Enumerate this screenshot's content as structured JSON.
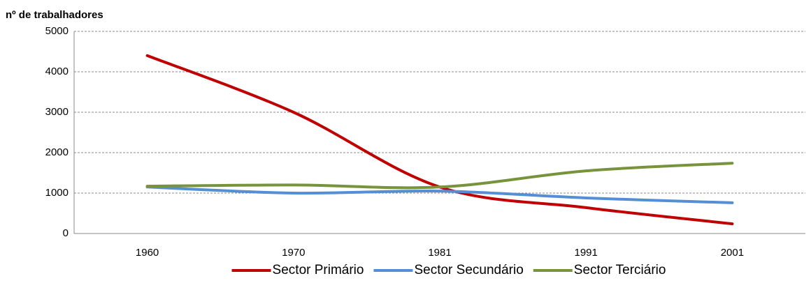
{
  "chart_data": {
    "type": "line",
    "y_label": "nº de trabalhadores",
    "categories": [
      "1960",
      "1970",
      "1981",
      "1991",
      "2001"
    ],
    "series": [
      {
        "name": "Sector Primário",
        "color": "#c00000",
        "values": [
          4400,
          3000,
          1150,
          640,
          240
        ]
      },
      {
        "name": "Sector Secundário",
        "color": "#558ed5",
        "values": [
          1150,
          1000,
          1050,
          880,
          760
        ]
      },
      {
        "name": "Sector Terciário",
        "color": "#77933c",
        "values": [
          1170,
          1200,
          1150,
          1550,
          1740
        ]
      }
    ],
    "ylim": [
      0,
      5000
    ],
    "yticks": [
      0,
      1000,
      2000,
      3000,
      4000,
      5000
    ],
    "grid": true,
    "smooth": true,
    "legend": "bottom"
  }
}
